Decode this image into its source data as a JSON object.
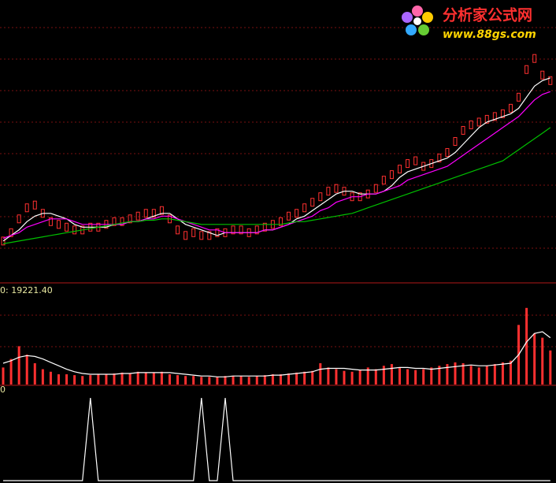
{
  "watermark": {
    "title": "分析家公式网",
    "url": "www.88gs.com"
  },
  "chart_data": [
    {
      "type": "price",
      "ylim": [
        0,
        100
      ],
      "candle_color": "#ff3030",
      "values": [
        14,
        17,
        22,
        26,
        27,
        24,
        21,
        20,
        19,
        18,
        18,
        19,
        19,
        20,
        21,
        21,
        22,
        23,
        24,
        24,
        25,
        22,
        18,
        16,
        17,
        16,
        16,
        17,
        17,
        18,
        18,
        17,
        18,
        19,
        20,
        21,
        23,
        24,
        26,
        28,
        30,
        32,
        33,
        32,
        30,
        30,
        31,
        33,
        36,
        38,
        40,
        42,
        43,
        41,
        42,
        44,
        46,
        50,
        54,
        56,
        57,
        58,
        59,
        60,
        62,
        66,
        76,
        80,
        74,
        72
      ],
      "series": [
        {
          "color": "#ffffff",
          "values": [
            14,
            16,
            18,
            21,
            23,
            24,
            24,
            23,
            22,
            20,
            19,
            19,
            19,
            19,
            20,
            20,
            21,
            21,
            22,
            23,
            24,
            24,
            22,
            20,
            19,
            18,
            17,
            16,
            17,
            17,
            17,
            17,
            17,
            18,
            18,
            19,
            20,
            22,
            23,
            25,
            27,
            29,
            31,
            32,
            32,
            31,
            31,
            31,
            32,
            34,
            37,
            39,
            40,
            41,
            42,
            43,
            44,
            46,
            49,
            52,
            55,
            57,
            58,
            59,
            60,
            62,
            66,
            70,
            72,
            73
          ]
        },
        {
          "color": "#ff00ff",
          "values": [
            15,
            16,
            17,
            19,
            20,
            21,
            22,
            22,
            22,
            21,
            20,
            20,
            20,
            20,
            20,
            20,
            21,
            21,
            22,
            22,
            23,
            23,
            22,
            21,
            20,
            19,
            18,
            18,
            17,
            17,
            17,
            17,
            17,
            18,
            18,
            19,
            20,
            21,
            22,
            23,
            25,
            26,
            28,
            29,
            30,
            30,
            31,
            31,
            32,
            33,
            34,
            36,
            37,
            38,
            39,
            40,
            41,
            43,
            45,
            47,
            49,
            51,
            53,
            55,
            57,
            59,
            62,
            65,
            67,
            68
          ]
        },
        {
          "color": "#00c000",
          "values": [
            13,
            13.5,
            14,
            14.5,
            15,
            15.5,
            16,
            16.5,
            17,
            17.5,
            18,
            18.5,
            19,
            19.5,
            20,
            20.5,
            21,
            21,
            21.5,
            21.5,
            22,
            22,
            21.5,
            21,
            20.5,
            20,
            20,
            20,
            20,
            20,
            20,
            20,
            20,
            20,
            20,
            20,
            20.5,
            21,
            21,
            21.5,
            22,
            22.5,
            23,
            23.5,
            24,
            25,
            26,
            27,
            28,
            29,
            30,
            31,
            32,
            33,
            34,
            35,
            36,
            37,
            38,
            39,
            40,
            41,
            42,
            43,
            45,
            47,
            49,
            51,
            53,
            55
          ]
        }
      ]
    },
    {
      "type": "bar",
      "label": "0: 19221.40",
      "ylim": [
        0,
        100
      ],
      "color": "#ff3030",
      "values": [
        20,
        30,
        45,
        35,
        25,
        18,
        15,
        12,
        12,
        11,
        10,
        11,
        12,
        12,
        13,
        14,
        13,
        15,
        14,
        14,
        15,
        12,
        11,
        10,
        10,
        9,
        9,
        9,
        10,
        10,
        10,
        9,
        10,
        11,
        12,
        12,
        13,
        14,
        15,
        16,
        25,
        20,
        18,
        16,
        15,
        17,
        20,
        18,
        22,
        24,
        20,
        18,
        17,
        18,
        20,
        22,
        24,
        26,
        25,
        22,
        20,
        22,
        24,
        26,
        28,
        70,
        90,
        60,
        55,
        40
      ],
      "series": [
        {
          "color": "#ffffff",
          "values": [
            25,
            28,
            32,
            34,
            33,
            30,
            26,
            22,
            18,
            15,
            13,
            12,
            12,
            12,
            12,
            13,
            13,
            14,
            14,
            14,
            14,
            14,
            13,
            12,
            11,
            10,
            10,
            9,
            9,
            10,
            10,
            10,
            10,
            10,
            11,
            11,
            12,
            13,
            14,
            15,
            18,
            19,
            19,
            19,
            18,
            17,
            17,
            17,
            18,
            19,
            20,
            20,
            19,
            19,
            18,
            19,
            20,
            21,
            22,
            23,
            22,
            22,
            23,
            24,
            25,
            35,
            50,
            60,
            62,
            55
          ]
        }
      ]
    },
    {
      "type": "line",
      "label": "0",
      "ylim": [
        0,
        1
      ],
      "color": "#ffffff",
      "values": [
        0,
        0,
        0,
        0,
        0,
        0,
        0,
        0,
        0,
        0,
        0,
        1,
        0,
        0,
        0,
        0,
        0,
        0,
        0,
        0,
        0,
        0,
        0,
        0,
        0,
        1,
        0,
        0,
        1,
        0,
        0,
        0,
        0,
        0,
        0,
        0,
        0,
        0,
        0,
        0,
        0,
        0,
        0,
        0,
        0,
        0,
        0,
        0,
        0,
        0,
        0,
        0,
        0,
        0,
        0,
        0,
        0,
        0,
        0,
        0,
        0,
        0,
        0,
        0,
        0,
        0,
        0,
        0,
        0,
        0
      ]
    }
  ]
}
